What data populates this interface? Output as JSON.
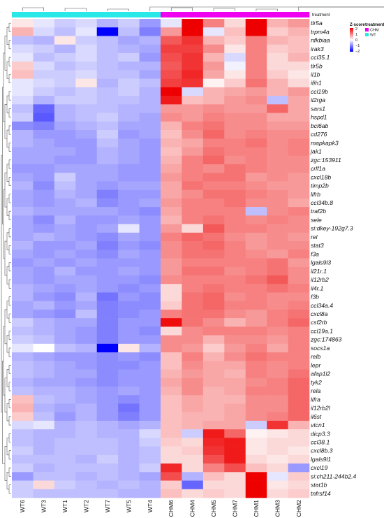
{
  "chart_data": {
    "type": "heatmap",
    "samples": [
      "WT6",
      "WT3",
      "WT1",
      "WT2",
      "WT7",
      "WT5",
      "WT4",
      "CHM6",
      "CHM4",
      "CHM5",
      "CHM7",
      "CHM1",
      "CHM3",
      "CHM2"
    ],
    "sample_treatment": [
      "WT",
      "WT",
      "WT",
      "WT",
      "WT",
      "WT",
      "WT",
      "CHM",
      "CHM",
      "CHM",
      "CHM",
      "CHM",
      "CHM",
      "CHM"
    ],
    "genes": [
      "tlr5a",
      "trpm4a",
      "nfkbiaa",
      "irak3",
      "ccl35.1",
      "tlr5b",
      "il1b",
      "ifih1",
      "ccl19b",
      "il2rga",
      "sars1",
      "hspd1",
      "bcl6ab",
      "cd276",
      "mapkapk3",
      "jak1",
      "zgc:153911",
      "crlf1a",
      "cxcl18b",
      "timp2b",
      "lifrb",
      "ccl34b.8",
      "traf2b",
      "sele",
      "si:dkey-192g7.3",
      "rel",
      "stat3",
      "f3a",
      "lgals9l3",
      "il21r.1",
      "il12rb2",
      "il4r.1",
      "f3b",
      "ccl34a.4",
      "cxcl8a",
      "csf2rb",
      "ccl19a.1",
      "zgc:174863",
      "socs1a",
      "relb",
      "lepr",
      "afap1l2",
      "tyk2",
      "rela",
      "lifra",
      "il12rb2l",
      "il6st",
      "vtcn1",
      "dicp3.3",
      "ccl38.1",
      "cxcl8b.3",
      "lgals9l1",
      "cxcl19",
      "si:ch211-244b2.4",
      "stat1b",
      "tnfrsf14"
    ],
    "values": [
      [
        0.2,
        -0.2,
        -0.4,
        -0.3,
        -0.6,
        -0.4,
        -0.8,
        -0.2,
        2.0,
        1.0,
        0.3,
        2.0,
        0.6,
        0.8
      ],
      [
        0.6,
        -0.3,
        -0.5,
        -0.2,
        -2.0,
        -0.5,
        -1.0,
        0.8,
        2.0,
        -0.2,
        0.5,
        2.0,
        0.4,
        0.6
      ],
      [
        -0.5,
        -0.6,
        0.2,
        -0.4,
        -0.5,
        -0.7,
        -0.6,
        1.3,
        1.6,
        0.6,
        0.4,
        1.0,
        0.6,
        0.5
      ],
      [
        -0.3,
        -0.4,
        -0.6,
        -0.3,
        -0.5,
        -0.6,
        -0.7,
        1.5,
        1.5,
        0.9,
        0.2,
        1.0,
        0.4,
        0.5
      ],
      [
        -0.2,
        -0.5,
        -0.4,
        -0.3,
        -0.5,
        -0.4,
        -0.8,
        1.4,
        1.6,
        0.6,
        -0.3,
        1.0,
        0.3,
        0.6
      ],
      [
        0.4,
        -0.3,
        -0.5,
        -0.4,
        -0.5,
        -0.6,
        -0.6,
        1.3,
        1.6,
        0.8,
        -0.1,
        1.0,
        0.3,
        0.3
      ],
      [
        0.5,
        -0.4,
        -0.4,
        -0.3,
        -0.5,
        -0.5,
        -0.7,
        1.4,
        1.7,
        0.7,
        0.2,
        1.0,
        0.4,
        0.2
      ],
      [
        -0.2,
        -0.3,
        -0.4,
        0.2,
        -0.6,
        -0.4,
        -0.5,
        1.5,
        1.6,
        0.1,
        0.4,
        1.1,
        0.6,
        0.3
      ],
      [
        -0.2,
        -0.4,
        -0.5,
        -0.4,
        -0.5,
        -0.4,
        -0.6,
        2.0,
        -0.3,
        0.6,
        0.7,
        0.8,
        0.6,
        0.8
      ],
      [
        -0.3,
        -0.6,
        -0.4,
        -0.4,
        -0.5,
        -0.5,
        -0.6,
        1.8,
        0.5,
        0.6,
        0.8,
        0.9,
        -0.5,
        0.7
      ],
      [
        -0.5,
        -1.2,
        -0.6,
        -0.5,
        -0.5,
        -0.6,
        -0.6,
        0.8,
        0.8,
        0.9,
        0.8,
        0.8,
        1.2,
        0.7
      ],
      [
        -0.4,
        -1.3,
        -0.6,
        -0.5,
        -0.4,
        -0.6,
        -0.7,
        0.9,
        0.8,
        1.0,
        0.9,
        0.9,
        0.7,
        0.7
      ],
      [
        -0.9,
        -1.0,
        -0.7,
        -0.6,
        -0.5,
        -0.7,
        -0.7,
        0.6,
        1.0,
        1.1,
        0.9,
        0.9,
        0.8,
        0.8
      ],
      [
        -0.6,
        -0.8,
        -0.8,
        -0.7,
        -0.4,
        -0.8,
        -0.7,
        0.5,
        0.9,
        1.2,
        0.9,
        1.0,
        0.9,
        0.9
      ],
      [
        -0.6,
        -0.7,
        -0.8,
        -0.8,
        -0.5,
        -0.7,
        -0.8,
        0.6,
        0.7,
        1.0,
        1.0,
        1.1,
        0.9,
        1.0
      ],
      [
        -0.7,
        -0.7,
        -0.7,
        -0.8,
        -0.6,
        -0.7,
        -0.8,
        0.5,
        0.8,
        1.1,
        1.0,
        1.0,
        0.9,
        1.0
      ],
      [
        -0.7,
        -0.7,
        -0.8,
        -0.8,
        -0.6,
        -0.7,
        -0.8,
        0.6,
        1.0,
        1.2,
        0.9,
        1.0,
        0.9,
        0.9
      ],
      [
        -0.8,
        -0.8,
        -0.7,
        -0.7,
        -0.7,
        -0.8,
        -0.8,
        0.7,
        1.0,
        0.9,
        1.1,
        1.0,
        0.9,
        0.9
      ],
      [
        -0.7,
        -0.8,
        -0.4,
        -0.7,
        -0.7,
        -0.8,
        -0.8,
        0.8,
        1.0,
        1.1,
        1.1,
        0.8,
        0.9,
        0.8
      ],
      [
        -0.6,
        -0.9,
        -0.5,
        -0.7,
        -0.8,
        -0.7,
        -0.7,
        0.7,
        1.1,
        1.0,
        1.0,
        0.9,
        0.8,
        0.8
      ],
      [
        -0.7,
        -0.8,
        -0.6,
        -0.7,
        -1.0,
        -0.8,
        -0.8,
        0.7,
        0.9,
        1.1,
        1.1,
        1.0,
        0.9,
        0.8
      ],
      [
        -0.7,
        -0.8,
        -0.7,
        -0.6,
        -0.9,
        -0.8,
        -0.7,
        0.8,
        1.0,
        1.0,
        1.1,
        0.9,
        0.9,
        0.7
      ],
      [
        -0.6,
        -0.7,
        -0.7,
        -0.7,
        -0.7,
        -0.8,
        -0.9,
        0.7,
        1.0,
        1.0,
        1.0,
        -0.5,
        0.9,
        1.0
      ],
      [
        -0.7,
        -0.9,
        -0.6,
        -0.8,
        -0.8,
        -0.7,
        -0.8,
        0.6,
        1.0,
        1.1,
        1.0,
        0.9,
        1.0,
        0.9
      ],
      [
        -0.7,
        -0.8,
        -0.7,
        -0.8,
        -0.7,
        -0.2,
        -0.8,
        0.8,
        0.3,
        1.3,
        1.0,
        1.0,
        0.9,
        0.9
      ],
      [
        -0.7,
        -0.6,
        -0.7,
        -0.8,
        -0.9,
        -0.7,
        -0.8,
        1.0,
        1.2,
        1.1,
        0.9,
        0.8,
        0.9,
        0.8
      ],
      [
        -0.6,
        -0.8,
        -0.8,
        -0.7,
        -1.0,
        -0.8,
        -0.9,
        0.9,
        1.1,
        1.2,
        1.0,
        0.8,
        0.9,
        0.9
      ],
      [
        -0.7,
        -0.8,
        -0.7,
        -0.8,
        -0.9,
        -0.7,
        -0.8,
        0.9,
        1.1,
        1.1,
        1.0,
        0.9,
        0.8,
        1.0
      ],
      [
        -0.8,
        -0.7,
        -0.8,
        -0.7,
        -0.8,
        -0.8,
        -0.8,
        0.8,
        1.0,
        1.0,
        1.0,
        1.0,
        1.1,
        0.8
      ],
      [
        -0.7,
        -0.8,
        -0.6,
        -0.8,
        -0.8,
        -0.7,
        -0.8,
        0.8,
        1.1,
        1.1,
        0.9,
        1.0,
        1.1,
        0.9
      ],
      [
        -0.7,
        -0.8,
        -0.7,
        -0.7,
        -0.8,
        -0.8,
        -0.9,
        0.9,
        1.0,
        1.0,
        1.0,
        1.1,
        1.3,
        0.9
      ],
      [
        -0.6,
        -0.7,
        -0.8,
        -0.7,
        -0.8,
        -0.9,
        -0.8,
        0.3,
        1.0,
        1.1,
        1.0,
        1.0,
        1.1,
        1.0
      ],
      [
        -0.6,
        -0.8,
        -0.9,
        -0.6,
        -1.1,
        -0.8,
        -0.9,
        0.3,
        1.1,
        1.2,
        0.9,
        1.0,
        0.9,
        0.9
      ],
      [
        -0.7,
        -0.6,
        -0.8,
        -0.7,
        -1.0,
        -0.9,
        -0.9,
        0.4,
        1.1,
        1.2,
        1.0,
        1.0,
        0.9,
        1.0
      ],
      [
        -0.7,
        -0.8,
        -0.9,
        -0.5,
        -1.0,
        -0.9,
        -0.8,
        1.0,
        1.1,
        1.1,
        0.9,
        0.8,
        1.0,
        1.1
      ],
      [
        -0.4,
        -0.6,
        -0.7,
        -0.7,
        -1.0,
        -0.8,
        -0.8,
        1.9,
        1.1,
        0.9,
        0.6,
        0.8,
        1.0,
        1.2
      ],
      [
        -0.5,
        -0.6,
        -0.7,
        -0.8,
        -1.0,
        -0.8,
        -0.9,
        0.3,
        0.9,
        1.0,
        1.0,
        1.0,
        0.9,
        1.0
      ],
      [
        -0.4,
        -0.5,
        -0.7,
        -0.8,
        -1.0,
        -0.8,
        -0.8,
        0.9,
        0.9,
        0.6,
        0.9,
        0.9,
        0.8,
        1.0
      ],
      [
        -0.2,
        0.0,
        -0.5,
        -0.6,
        -2.0,
        0.2,
        -0.6,
        0.9,
        0.8,
        0.4,
        0.8,
        1.0,
        0.7,
        1.0
      ],
      [
        -0.6,
        -0.7,
        -0.8,
        -0.8,
        -0.9,
        -0.8,
        -0.9,
        0.5,
        1.0,
        0.6,
        0.9,
        1.1,
        1.0,
        1.0
      ],
      [
        -0.5,
        -0.6,
        -0.7,
        -0.8,
        -0.9,
        -0.9,
        -0.8,
        0.5,
        0.9,
        0.7,
        0.7,
        1.0,
        0.9,
        1.0
      ],
      [
        -0.5,
        -0.6,
        -0.7,
        -0.7,
        -0.9,
        -0.8,
        -0.8,
        0.6,
        0.8,
        0.7,
        0.6,
        1.0,
        0.9,
        1.1
      ],
      [
        -0.6,
        -0.7,
        -0.7,
        -0.8,
        -0.9,
        -0.8,
        -0.8,
        0.7,
        0.9,
        0.7,
        0.7,
        0.9,
        1.0,
        1.2
      ],
      [
        -0.5,
        -0.6,
        -0.6,
        -0.7,
        -0.8,
        -0.7,
        -0.8,
        0.6,
        0.9,
        0.6,
        0.7,
        1.0,
        1.0,
        1.2
      ],
      [
        0.5,
        -0.5,
        -0.6,
        -0.7,
        -0.8,
        -0.9,
        -0.8,
        0.5,
        0.7,
        0.6,
        0.6,
        0.9,
        0.9,
        1.2
      ],
      [
        0.6,
        -0.6,
        -0.7,
        -0.6,
        -0.8,
        -1.1,
        -0.8,
        0.5,
        0.7,
        0.6,
        0.7,
        0.9,
        0.9,
        1.2
      ],
      [
        0.4,
        -0.5,
        -0.8,
        -0.6,
        -0.8,
        -1.0,
        -0.8,
        0.5,
        0.6,
        0.6,
        0.7,
        0.9,
        1.0,
        1.2
      ],
      [
        -0.3,
        -0.2,
        -0.6,
        -0.5,
        -0.6,
        -0.7,
        -0.6,
        0.5,
        0.6,
        0.7,
        0.7,
        -0.4,
        1.6,
        0.6
      ],
      [
        -0.5,
        -0.6,
        -0.6,
        -0.5,
        -0.6,
        -0.6,
        -0.3,
        0.5,
        -0.4,
        1.8,
        1.2,
        0.1,
        0.2,
        0.3
      ],
      [
        -0.5,
        -0.6,
        -0.5,
        -0.5,
        -0.5,
        -0.6,
        -0.4,
        0.4,
        0.3,
        1.7,
        1.8,
        0.2,
        0.3,
        0.3
      ],
      [
        -0.4,
        -0.6,
        -0.5,
        -0.5,
        -0.5,
        -0.6,
        -0.5,
        0.3,
        0.4,
        1.6,
        1.8,
        0.2,
        0.3,
        0.2
      ],
      [
        -0.5,
        -0.5,
        -0.5,
        -0.6,
        -0.4,
        -0.6,
        -0.5,
        0.3,
        0.3,
        1.4,
        1.8,
        0.3,
        0.2,
        0.3
      ],
      [
        -0.4,
        -0.6,
        -0.5,
        -0.5,
        -0.5,
        -0.6,
        -0.4,
        1.7,
        0.3,
        1.0,
        1.4,
        0.5,
        0.3,
        -0.8
      ],
      [
        -0.8,
        -0.5,
        -0.5,
        -0.6,
        -0.5,
        -0.6,
        -0.7,
        1.4,
        -0.6,
        0.5,
        0.3,
        2.0,
        -0.2,
        0.4
      ],
      [
        -0.4,
        0.3,
        -0.4,
        -0.5,
        -0.6,
        -0.5,
        -0.6,
        0.4,
        -1.2,
        0.3,
        0.3,
        2.0,
        0.2,
        0.3
      ],
      [
        -0.4,
        -0.5,
        -0.5,
        -0.5,
        -0.5,
        -0.6,
        -0.6,
        0.5,
        0.3,
        0.4,
        0.3,
        2.0,
        0.3,
        0.4
      ]
    ],
    "treatment_colors": {
      "CHM": "#f000f0",
      "WT": "#2ae8e8"
    },
    "legend": {
      "scale_title": "Z-score",
      "ticks": [
        "2",
        "1",
        "0",
        "−1",
        "−2"
      ],
      "treatment_title": "treatment",
      "treatment_labels": [
        "CHM",
        "WT"
      ]
    },
    "annotation_label": "treatment",
    "colors": {
      "low": "#0000ff",
      "mid": "#ffffff",
      "high": "#ee0000"
    }
  }
}
